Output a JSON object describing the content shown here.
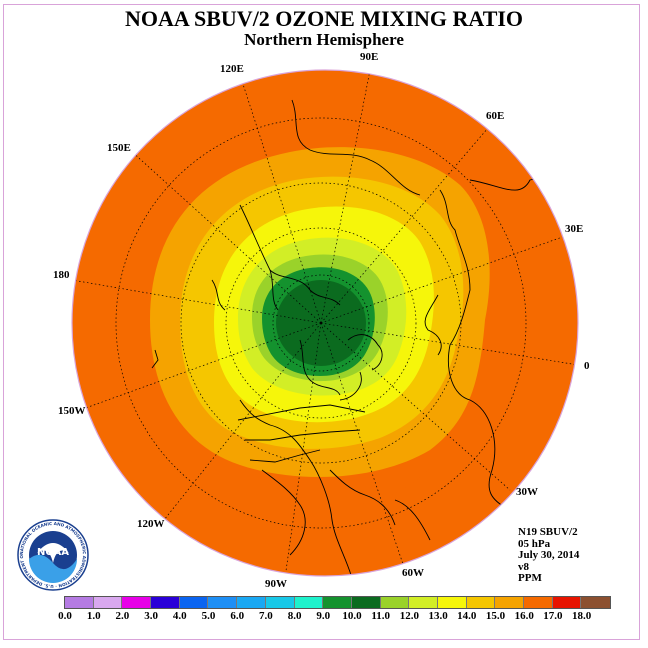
{
  "title": "NOAA SBUV/2 OZONE MIXING RATIO",
  "subtitle": "Northern Hemisphere",
  "longitude_labels": [
    {
      "text": "90E"
    },
    {
      "text": "60E"
    },
    {
      "text": "120E"
    },
    {
      "text": "150E"
    },
    {
      "text": "30E"
    },
    {
      "text": "180"
    },
    {
      "text": "0"
    },
    {
      "text": "150W"
    },
    {
      "text": "30W"
    },
    {
      "text": "120W"
    },
    {
      "text": "60W"
    },
    {
      "text": "90W"
    }
  ],
  "info": {
    "satellite": "N19 SBUV/2",
    "level": "05 hPa",
    "date": "July 30, 2014",
    "version": "v8",
    "units": "PPM"
  },
  "colorbar": {
    "colors": [
      "#b57be3",
      "#d9a8ef",
      "#e800e8",
      "#2a00d8",
      "#0a64f0",
      "#1e8ff5",
      "#1aa8f3",
      "#18c8e8",
      "#1ef2cc",
      "#14922e",
      "#0b6b1f",
      "#9ad22a",
      "#d2ee26",
      "#f6f60a",
      "#f5c600",
      "#f5a300",
      "#f56a00",
      "#e81400",
      "#8c5030"
    ],
    "ticks": [
      "0.0",
      "1.0",
      "2.0",
      "3.0",
      "4.0",
      "5.0",
      "6.0",
      "7.0",
      "8.0",
      "9.0",
      "10.0",
      "11.0",
      "12.0",
      "13.0",
      "14.0",
      "15.0",
      "16.0",
      "17.0",
      "18.0"
    ]
  },
  "logo": {
    "text": "NOAA",
    "ring_text": "NATIONAL OCEANIC AND ATMOSPHERIC ADMINISTRATION · U.S. DEPARTMENT OF COMMERCE"
  }
}
